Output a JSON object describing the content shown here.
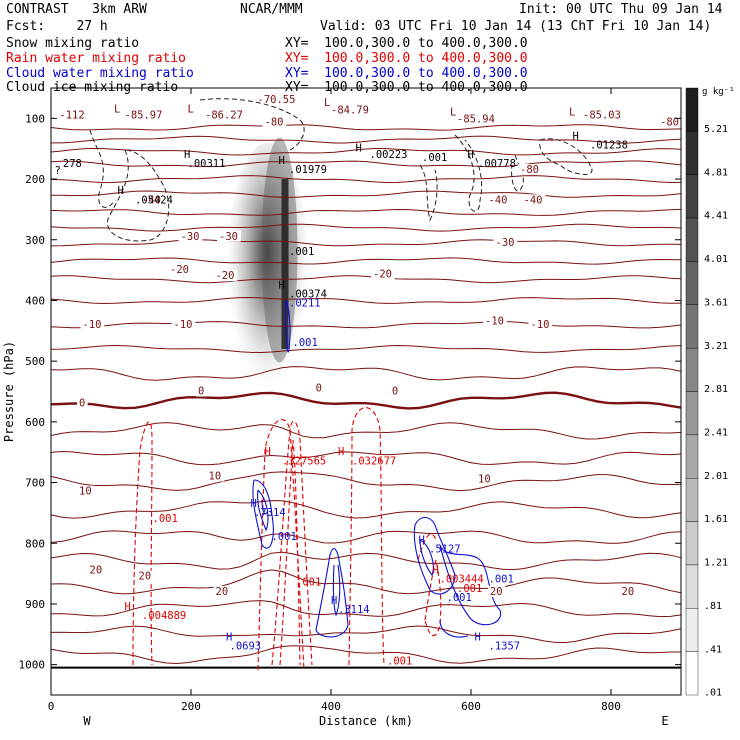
{
  "header": {
    "model": "CONTRAST   3km ARW",
    "center": "NCAR/MMM",
    "init": "Init: 00 UTC Thu 09 Jan 14",
    "fcst": "Fcst:    27 h",
    "valid": "Valid: 03 UTC Fri 10 Jan 14 (13 ChT Fri 10 Jan 14)"
  },
  "fields": [
    {
      "name": "Snow mixing ratio",
      "xy": "XY=  100.0,300.0 to 400.0,300.0",
      "color": "#000000"
    },
    {
      "name": "Rain water mixing ratio",
      "xy": "XY=  100.0,300.0 to 400.0,300.0",
      "color": "#e00000"
    },
    {
      "name": "Cloud water mixing ratio",
      "xy": "XY=  100.0,300.0 to 400.0,300.0",
      "color": "#0000d0"
    },
    {
      "name": "Cloud ice mixing ratio",
      "xy": "XY=  100.0,300.0 to 400.0,300.0",
      "color": "#000000"
    }
  ],
  "chart_data": {
    "type": "heatmap",
    "xlabel": "Distance (km)",
    "ylabel": "Pressure (hPa)",
    "xlim": [
      0,
      900
    ],
    "ylim": [
      1050,
      50
    ],
    "x_ticks": [
      "0",
      "200",
      "400",
      "600",
      "800"
    ],
    "x_tick_values": [
      0,
      200,
      400,
      600,
      800
    ],
    "y_ticks": [
      "100",
      "200",
      "300",
      "400",
      "500",
      "600",
      "700",
      "800",
      "900",
      "1000"
    ],
    "y_tick_values": [
      100,
      200,
      300,
      400,
      500,
      600,
      700,
      800,
      900,
      1000
    ],
    "west_label": "W",
    "east_label": "E",
    "colorbar": {
      "unit": "g kg⁻¹",
      "labels": [
        "5.21",
        "4.81",
        "4.41",
        "4.01",
        "3.61",
        "3.21",
        "2.81",
        "2.41",
        "2.01",
        "1.61",
        "1.21",
        ".81",
        ".41",
        ".01"
      ],
      "values": [
        5.21,
        4.81,
        4.41,
        4.01,
        3.61,
        3.21,
        2.81,
        2.41,
        2.01,
        1.61,
        1.21,
        0.81,
        0.41,
        0.01
      ]
    },
    "snow_column": {
      "x_center": 335,
      "p_top": 140,
      "p_bottom": 560,
      "max": 5.2
    },
    "temperature_contours": {
      "color": "#7a1010",
      "pressures": [
        115,
        135,
        155,
        175,
        200,
        225,
        255,
        280,
        305,
        335,
        365,
        400,
        440,
        480,
        520,
        565,
        615,
        660,
        700,
        745,
        790,
        830,
        870,
        910,
        950,
        985
      ],
      "labels": [
        {
          "text": "-80",
          "x": 305,
          "p": 112
        },
        {
          "text": "-80",
          "x": 870,
          "p": 112
        },
        {
          "text": "-80",
          "x": 670,
          "p": 190
        },
        {
          "text": "-40",
          "x": 130,
          "p": 240
        },
        {
          "text": "-40",
          "x": 625,
          "p": 240
        },
        {
          "text": "-40",
          "x": 675,
          "p": 240
        },
        {
          "text": "-30",
          "x": 185,
          "p": 300
        },
        {
          "text": "-30",
          "x": 240,
          "p": 300
        },
        {
          "text": "-30",
          "x": 635,
          "p": 310
        },
        {
          "text": "-20",
          "x": 170,
          "p": 355
        },
        {
          "text": "-20",
          "x": 235,
          "p": 365
        },
        {
          "text": "-20",
          "x": 460,
          "p": 362
        },
        {
          "text": "-10",
          "x": 45,
          "p": 445
        },
        {
          "text": "-10",
          "x": 175,
          "p": 445
        },
        {
          "text": "-10",
          "x": 620,
          "p": 440
        },
        {
          "text": "-10",
          "x": 685,
          "p": 445
        },
        {
          "text": "0",
          "x": 40,
          "p": 575
        },
        {
          "text": "0",
          "x": 210,
          "p": 555
        },
        {
          "text": "0",
          "x": 487,
          "p": 555
        },
        {
          "text": "10",
          "x": 40,
          "p": 720
        },
        {
          "text": "10",
          "x": 225,
          "p": 695
        },
        {
          "text": "10",
          "x": 610,
          "p": 700
        },
        {
          "text": "20",
          "x": 55,
          "p": 850
        },
        {
          "text": "20",
          "x": 125,
          "p": 860
        },
        {
          "text": "20",
          "x": 235,
          "p": 885
        },
        {
          "text": "20",
          "x": 627,
          "p": 885
        },
        {
          "text": "20",
          "x": 815,
          "p": 885
        },
        {
          "text": "0",
          "x": 378,
          "p": 550
        }
      ],
      "extremes": [
        {
          "text": "L",
          "x": 90,
          "p": 90
        },
        {
          "text": "-85.97",
          "x": 105,
          "p": 100
        },
        {
          "text": "L",
          "x": 195,
          "p": 90
        },
        {
          "text": "-86.27",
          "x": 220,
          "p": 100
        },
        {
          "text": "-70.55",
          "x": 295,
          "p": 75
        },
        {
          "text": "L",
          "x": 390,
          "p": 80
        },
        {
          "text": "-84.79",
          "x": 400,
          "p": 92
        },
        {
          "text": "L",
          "x": 570,
          "p": 95
        },
        {
          "text": "-85.94",
          "x": 580,
          "p": 107
        },
        {
          "text": "L",
          "x": 740,
          "p": 95
        },
        {
          "text": "-85.03",
          "x": 760,
          "p": 100
        },
        {
          "text": "-112",
          "x": 12,
          "p": 100
        }
      ]
    },
    "ice_labels": [
      {
        "text": "H",
        "x": 190,
        "p": 165
      },
      {
        "text": ".00311",
        "x": 195,
        "p": 180
      },
      {
        "text": "H",
        "x": 325,
        "p": 175
      },
      {
        "text": ".01979",
        "x": 340,
        "p": 190
      },
      {
        "text": "H",
        "x": 435,
        "p": 155
      },
      {
        "text": ".00223",
        "x": 455,
        "p": 165
      },
      {
        "text": ".001",
        "x": 530,
        "p": 170
      },
      {
        "text": "H",
        "x": 595,
        "p": 165
      },
      {
        "text": ".00778",
        "x": 610,
        "p": 180
      },
      {
        "text": "H",
        "x": 745,
        "p": 135
      },
      {
        "text": ".01238",
        "x": 770,
        "p": 150
      },
      {
        "text": "H",
        "x": 95,
        "p": 225
      },
      {
        "text": ".05424",
        "x": 120,
        "p": 240
      },
      {
        "text": "278",
        "x": 17,
        "p": 180
      },
      {
        "text": "?",
        "x": 5,
        "p": 192
      },
      {
        "text": ".001",
        "x": 340,
        "p": 325
      },
      {
        "text": "H",
        "x": 325,
        "p": 380
      },
      {
        "text": ".00374",
        "x": 340,
        "p": 395
      }
    ],
    "rain_labels": [
      {
        "text": "H",
        "x": 305,
        "p": 655
      },
      {
        "text": ".327565",
        "x": 330,
        "p": 670
      },
      {
        "text": "H",
        "x": 410,
        "p": 655
      },
      {
        "text": ".032677",
        "x": 430,
        "p": 670
      },
      {
        "text": ".001",
        "x": 145,
        "p": 765
      },
      {
        "text": "H",
        "x": 105,
        "p": 910
      },
      {
        "text": ".004889",
        "x": 130,
        "p": 925
      },
      {
        "text": ".001",
        "x": 350,
        "p": 870
      },
      {
        "text": "H",
        "x": 545,
        "p": 850
      },
      {
        "text": ".003444",
        "x": 555,
        "p": 865
      },
      {
        "text": ".001",
        "x": 480,
        "p": 1000
      },
      {
        "text": ".001",
        "x": 580,
        "p": 880
      }
    ],
    "cloud_water_labels": [
      {
        "text": ".0211",
        "x": 340,
        "p": 410
      },
      {
        "text": ".001",
        "x": 345,
        "p": 475
      },
      {
        "text": "H",
        "x": 285,
        "p": 740
      },
      {
        "text": ".7314",
        "x": 290,
        "p": 755
      },
      {
        "text": ".001",
        "x": 315,
        "p": 795
      },
      {
        "text": "H",
        "x": 400,
        "p": 900
      },
      {
        "text": ".3114",
        "x": 410,
        "p": 915
      },
      {
        "text": "H",
        "x": 525,
        "p": 800
      },
      {
        "text": ".5127",
        "x": 540,
        "p": 815
      },
      {
        "text": ".001",
        "x": 565,
        "p": 895
      },
      {
        "text": ".001",
        "x": 625,
        "p": 865
      },
      {
        "text": "H",
        "x": 250,
        "p": 960
      },
      {
        "text": ".0693",
        "x": 255,
        "p": 975
      },
      {
        "text": "H",
        "x": 605,
        "p": 960
      },
      {
        "text": ".1357",
        "x": 625,
        "p": 975
      }
    ]
  }
}
